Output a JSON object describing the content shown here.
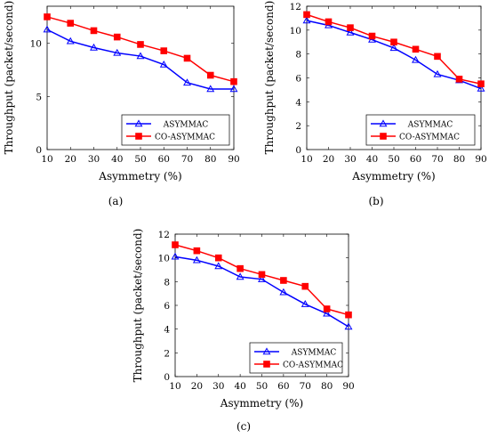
{
  "chart_data": [
    {
      "panel_label": "(a)",
      "type": "line",
      "xlabel": "Asymmetry (%)",
      "ylabel": "Throughput (packet/second)",
      "x": [
        10,
        20,
        30,
        40,
        50,
        60,
        70,
        80,
        90
      ],
      "xlim": [
        10,
        90
      ],
      "ylim": [
        0,
        13.5
      ],
      "yticks": [
        0,
        5,
        10
      ],
      "grid": false,
      "legend_position": "bottom-right",
      "series": [
        {
          "name": "ASYMMAC",
          "color": "#0000ff",
          "marker": "triangle",
          "values": [
            11.3,
            10.2,
            9.6,
            9.1,
            8.8,
            8.0,
            6.3,
            5.7,
            5.7
          ]
        },
        {
          "name": "CO-ASYMMAC",
          "color": "#ff0000",
          "marker": "square",
          "values": [
            12.5,
            11.9,
            11.2,
            10.6,
            9.9,
            9.3,
            8.6,
            7.0,
            6.4
          ]
        }
      ]
    },
    {
      "panel_label": "(b)",
      "type": "line",
      "xlabel": "Asymmetry (%)",
      "ylabel": "Throughput (packet/second)",
      "x": [
        10,
        20,
        30,
        40,
        50,
        60,
        70,
        80,
        90
      ],
      "xlim": [
        10,
        90
      ],
      "ylim": [
        0,
        12
      ],
      "yticks": [
        0,
        2,
        4,
        6,
        8,
        10,
        12
      ],
      "grid": false,
      "legend_position": "bottom-right",
      "series": [
        {
          "name": "ASYMMAC",
          "color": "#0000ff",
          "marker": "triangle",
          "values": [
            10.8,
            10.4,
            9.8,
            9.2,
            8.5,
            7.5,
            6.3,
            5.8,
            5.1
          ]
        },
        {
          "name": "CO-ASYMMAC",
          "color": "#ff0000",
          "marker": "square",
          "values": [
            11.3,
            10.7,
            10.2,
            9.5,
            9.0,
            8.4,
            7.8,
            5.9,
            5.5
          ]
        }
      ]
    },
    {
      "panel_label": "(c)",
      "type": "line",
      "xlabel": "Asymmetry (%)",
      "ylabel": "Throughput (packet/second)",
      "x": [
        10,
        20,
        30,
        40,
        50,
        60,
        70,
        80,
        90
      ],
      "xlim": [
        10,
        90
      ],
      "ylim": [
        0,
        12
      ],
      "yticks": [
        0,
        2,
        4,
        6,
        8,
        10,
        12
      ],
      "grid": false,
      "legend_position": "bottom-right",
      "series": [
        {
          "name": "ASYMMAC",
          "color": "#0000ff",
          "marker": "triangle",
          "values": [
            10.1,
            9.8,
            9.3,
            8.4,
            8.2,
            7.1,
            6.1,
            5.3,
            4.2
          ]
        },
        {
          "name": "CO-ASYMMAC",
          "color": "#ff0000",
          "marker": "square",
          "values": [
            11.1,
            10.6,
            10.0,
            9.1,
            8.6,
            8.1,
            7.6,
            5.7,
            5.2
          ]
        }
      ]
    }
  ]
}
